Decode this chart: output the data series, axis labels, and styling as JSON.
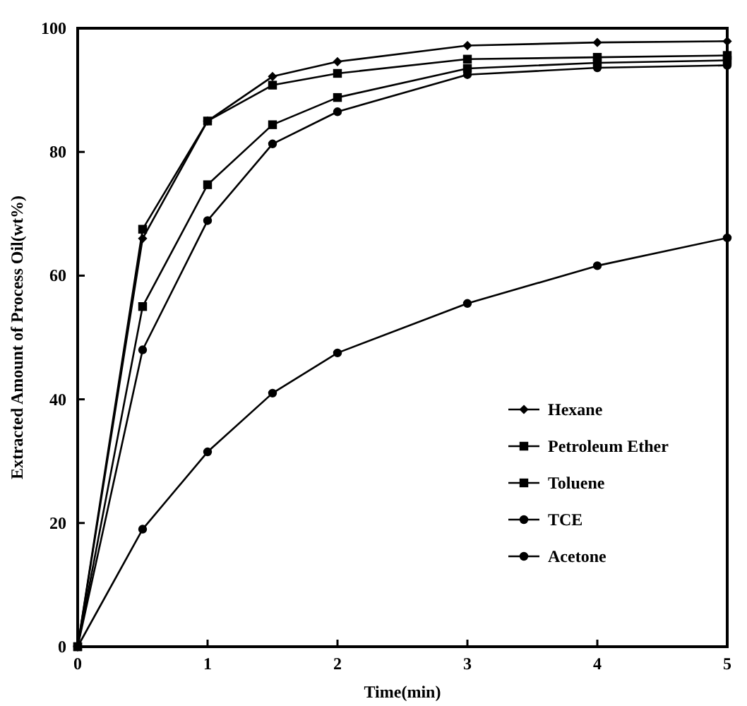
{
  "chart_data": {
    "type": "line",
    "xlabel": "Time(min)",
    "ylabel": "Extracted Amount of Process Oil(wt%)",
    "x": [
      0,
      0.5,
      1,
      1.5,
      2,
      3,
      4,
      5
    ],
    "xlim": [
      0,
      5
    ],
    "xticks": [
      0,
      1,
      2,
      3,
      4,
      5
    ],
    "ylim": [
      0,
      100
    ],
    "yticks": [
      0,
      20,
      40,
      60,
      80,
      100
    ],
    "legend": "bottom right",
    "grid": false,
    "series": [
      {
        "name": "Hexane",
        "color": "#000000",
        "marker": "diamond",
        "values": [
          0,
          66,
          85,
          92.2,
          94.6,
          97.2,
          97.7,
          97.9
        ]
      },
      {
        "name": "Petroleum Ether",
        "color": "#000000",
        "marker": "square",
        "values": [
          0,
          67.5,
          85,
          90.8,
          92.7,
          95,
          95.3,
          95.6
        ]
      },
      {
        "name": "Toluene",
        "color": "#000000",
        "marker": "square",
        "values": [
          0,
          55,
          74.7,
          84.4,
          88.8,
          93.5,
          94.4,
          94.8
        ]
      },
      {
        "name": "TCE",
        "color": "#000000",
        "marker": "circle",
        "values": [
          0,
          48,
          68.9,
          81.3,
          86.5,
          92.5,
          93.6,
          94
        ]
      },
      {
        "name": "Acetone",
        "color": "#000000",
        "marker": "circle",
        "values": [
          0,
          19,
          31.5,
          41,
          47.5,
          55.5,
          61.6,
          66.1
        ]
      }
    ]
  }
}
